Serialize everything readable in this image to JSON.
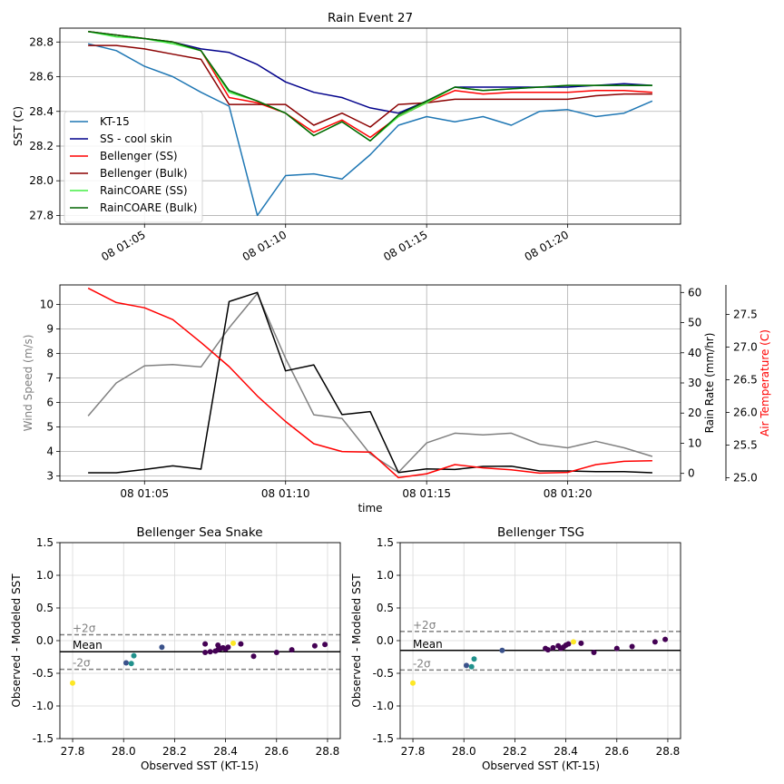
{
  "chart_data": [
    {
      "type": "line",
      "title": "Rain Event 27",
      "ylabel": "SST (C)",
      "xlabel": "",
      "x_start": "08 01:03",
      "x_step_minutes": 1,
      "xlim": [
        "08 01:02",
        "08 01:24"
      ],
      "ylim": [
        27.75,
        28.88
      ],
      "x_ticks": [
        "08 01:05",
        "08 01:10",
        "08 01:15",
        "08 01:20"
      ],
      "y_ticks": [
        27.8,
        28.0,
        28.2,
        28.4,
        28.6,
        28.8
      ],
      "grid": true,
      "legend": "lower-left",
      "series": [
        {
          "name": "KT-15",
          "color": "#1f77b4",
          "values": [
            28.79,
            28.75,
            28.66,
            28.6,
            28.51,
            28.43,
            27.8,
            28.03,
            28.04,
            28.01,
            28.15,
            28.32,
            28.37,
            28.34,
            28.37,
            28.32,
            28.4,
            28.41,
            28.37,
            28.39,
            28.46
          ]
        },
        {
          "name": "SS - cool skin",
          "color": "#00008b",
          "values": [
            28.86,
            28.84,
            28.82,
            28.8,
            28.76,
            28.74,
            28.67,
            28.57,
            28.51,
            28.48,
            28.42,
            28.39,
            28.46,
            28.54,
            28.54,
            28.54,
            28.54,
            28.54,
            28.55,
            28.56,
            28.55
          ]
        },
        {
          "name": "Bellenger (SS)",
          "color": "#ff0000",
          "values": [
            28.86,
            28.84,
            28.82,
            28.8,
            28.75,
            28.48,
            28.45,
            28.39,
            28.28,
            28.35,
            28.25,
            28.37,
            28.45,
            28.52,
            28.5,
            28.51,
            28.51,
            28.51,
            28.52,
            28.52,
            28.51
          ]
        },
        {
          "name": "Bellenger (Bulk)",
          "color": "#8b0000",
          "values": [
            28.78,
            28.78,
            28.76,
            28.73,
            28.7,
            28.44,
            28.44,
            28.44,
            28.32,
            28.39,
            28.31,
            28.44,
            28.45,
            28.47,
            28.47,
            28.47,
            28.47,
            28.47,
            28.49,
            28.5,
            28.5
          ]
        },
        {
          "name": "RainCOARE (SS)",
          "color": "#44ee44",
          "values": [
            28.86,
            28.83,
            28.82,
            28.79,
            28.75,
            28.51,
            28.46,
            28.39,
            28.26,
            28.34,
            28.23,
            28.37,
            28.45,
            28.54,
            28.52,
            28.53,
            28.54,
            28.55,
            28.55,
            28.55,
            28.55
          ]
        },
        {
          "name": "RainCOARE (Bulk)",
          "color": "#006400",
          "values": [
            28.86,
            28.84,
            28.82,
            28.8,
            28.75,
            28.52,
            28.46,
            28.39,
            28.26,
            28.34,
            28.23,
            28.38,
            28.46,
            28.54,
            28.52,
            28.53,
            28.54,
            28.55,
            28.55,
            28.55,
            28.55
          ]
        }
      ]
    },
    {
      "type": "line",
      "title": "",
      "xlabel": "time",
      "x_start": "08 01:03",
      "x_step_minutes": 1,
      "xlim": [
        "08 01:02",
        "08 01:24"
      ],
      "x_ticks": [
        "08 01:05",
        "08 01:10",
        "08 01:15",
        "08 01:20"
      ],
      "grid": true,
      "axes": {
        "left": {
          "label": "Wind Speed (m/s)",
          "label_color": "#808080",
          "range": [
            2.8,
            10.8
          ],
          "ticks": [
            3,
            4,
            5,
            6,
            7,
            8,
            9,
            10
          ]
        },
        "right": {
          "label": "Rain Rate (mm/hr)",
          "label_color": "#000000",
          "range": [
            -2.5,
            62.5
          ],
          "ticks": [
            0,
            10,
            20,
            30,
            40,
            50,
            60
          ]
        },
        "far_right": {
          "label": "Air Temperature (C)",
          "label_color": "#ff0000",
          "range": [
            24.95,
            27.95
          ],
          "ticks": [
            25.0,
            25.5,
            26.0,
            26.5,
            27.0,
            27.5
          ]
        }
      },
      "series": [
        {
          "axis": "left",
          "color": "#808080",
          "values": [
            5.45,
            6.8,
            7.5,
            7.55,
            7.45,
            9.05,
            10.45,
            7.8,
            5.5,
            5.35,
            3.9,
            3.15,
            4.35,
            4.75,
            4.68,
            4.75,
            4.3,
            4.15,
            4.42,
            4.15,
            3.8
          ]
        },
        {
          "axis": "right",
          "color": "#000000",
          "values": [
            0.2,
            0.2,
            1.3,
            2.5,
            1.4,
            57.0,
            60.0,
            34.0,
            36.0,
            19.5,
            20.5,
            0.3,
            1.5,
            1.3,
            2.3,
            2.4,
            0.8,
            0.8,
            0.6,
            0.6,
            0.2
          ]
        },
        {
          "axis": "far_right",
          "color": "#ff0000",
          "values": [
            27.9,
            27.68,
            27.6,
            27.42,
            27.07,
            26.7,
            26.25,
            25.86,
            25.52,
            25.4,
            25.39,
            25.0,
            25.06,
            25.2,
            25.15,
            25.12,
            25.07,
            25.08,
            25.2,
            25.25,
            25.26
          ]
        }
      ]
    },
    {
      "type": "scatter",
      "title": "Bellenger Sea Snake",
      "xlabel": "Observed SST (KT-15)",
      "ylabel": "Observed - Modeled SST",
      "xlim": [
        27.75,
        28.85
      ],
      "ylim": [
        -1.5,
        1.5
      ],
      "x_ticks": [
        "27.8",
        "28.0",
        "28.2",
        "28.4",
        "28.6",
        "28.8"
      ],
      "y_ticks": [
        "-1.5",
        "-1.0",
        "-0.5",
        "0.0",
        "0.5",
        "1.0",
        "1.5"
      ],
      "grid": true,
      "reference_lines": [
        {
          "label": "+2σ",
          "y": 0.09,
          "style": "dashed",
          "color": "#808080"
        },
        {
          "label": "Mean",
          "y": -0.17,
          "style": "solid",
          "color": "#000000"
        },
        {
          "label": "-2σ",
          "y": -0.44,
          "style": "dashed",
          "color": "#808080"
        }
      ],
      "points": [
        {
          "x": 27.8,
          "y": -0.65,
          "color": "#fde725"
        },
        {
          "x": 28.01,
          "y": -0.34,
          "color": "#3b528b"
        },
        {
          "x": 28.03,
          "y": -0.35,
          "color": "#21918c"
        },
        {
          "x": 28.04,
          "y": -0.23,
          "color": "#21918c"
        },
        {
          "x": 28.15,
          "y": -0.1,
          "color": "#3b528b"
        },
        {
          "x": 28.32,
          "y": -0.05,
          "color": "#440154"
        },
        {
          "x": 28.32,
          "y": -0.18,
          "color": "#440154"
        },
        {
          "x": 28.34,
          "y": -0.17,
          "color": "#440154"
        },
        {
          "x": 28.36,
          "y": -0.16,
          "color": "#440154"
        },
        {
          "x": 28.37,
          "y": -0.07,
          "color": "#440154"
        },
        {
          "x": 28.37,
          "y": -0.14,
          "color": "#440154"
        },
        {
          "x": 28.38,
          "y": -0.12,
          "color": "#440154"
        },
        {
          "x": 28.39,
          "y": -0.11,
          "color": "#440154"
        },
        {
          "x": 28.4,
          "y": -0.13,
          "color": "#440154"
        },
        {
          "x": 28.41,
          "y": -0.1,
          "color": "#440154"
        },
        {
          "x": 28.43,
          "y": -0.04,
          "color": "#fde725"
        },
        {
          "x": 28.46,
          "y": -0.05,
          "color": "#440154"
        },
        {
          "x": 28.51,
          "y": -0.24,
          "color": "#440154"
        },
        {
          "x": 28.6,
          "y": -0.18,
          "color": "#440154"
        },
        {
          "x": 28.66,
          "y": -0.14,
          "color": "#440154"
        },
        {
          "x": 28.75,
          "y": -0.08,
          "color": "#440154"
        },
        {
          "x": 28.79,
          "y": -0.06,
          "color": "#440154"
        }
      ]
    },
    {
      "type": "scatter",
      "title": "Bellenger TSG",
      "xlabel": "Observed SST (KT-15)",
      "ylabel": "Observed - Modeled SST",
      "xlim": [
        27.75,
        28.85
      ],
      "ylim": [
        -1.5,
        1.5
      ],
      "x_ticks": [
        "27.8",
        "28.0",
        "28.2",
        "28.4",
        "28.6",
        "28.8"
      ],
      "y_ticks": [
        "-1.5",
        "-1.0",
        "-0.5",
        "0.0",
        "0.5",
        "1.0",
        "1.5"
      ],
      "grid": true,
      "reference_lines": [
        {
          "label": "+2σ",
          "y": 0.14,
          "style": "dashed",
          "color": "#808080"
        },
        {
          "label": "Mean",
          "y": -0.15,
          "style": "solid",
          "color": "#000000"
        },
        {
          "label": "-2σ",
          "y": -0.45,
          "style": "dashed",
          "color": "#808080"
        }
      ],
      "points": [
        {
          "x": 27.8,
          "y": -0.65,
          "color": "#fde725"
        },
        {
          "x": 28.01,
          "y": -0.38,
          "color": "#3b528b"
        },
        {
          "x": 28.03,
          "y": -0.4,
          "color": "#21918c"
        },
        {
          "x": 28.04,
          "y": -0.28,
          "color": "#21918c"
        },
        {
          "x": 28.15,
          "y": -0.15,
          "color": "#3b528b"
        },
        {
          "x": 28.32,
          "y": -0.12,
          "color": "#440154"
        },
        {
          "x": 28.33,
          "y": -0.14,
          "color": "#440154"
        },
        {
          "x": 28.35,
          "y": -0.11,
          "color": "#440154"
        },
        {
          "x": 28.37,
          "y": -0.08,
          "color": "#440154"
        },
        {
          "x": 28.38,
          "y": -0.12,
          "color": "#440154"
        },
        {
          "x": 28.39,
          "y": -0.1,
          "color": "#440154"
        },
        {
          "x": 28.4,
          "y": -0.07,
          "color": "#440154"
        },
        {
          "x": 28.41,
          "y": -0.05,
          "color": "#440154"
        },
        {
          "x": 28.43,
          "y": -0.02,
          "color": "#fde725"
        },
        {
          "x": 28.46,
          "y": -0.04,
          "color": "#440154"
        },
        {
          "x": 28.51,
          "y": -0.18,
          "color": "#440154"
        },
        {
          "x": 28.6,
          "y": -0.12,
          "color": "#440154"
        },
        {
          "x": 28.66,
          "y": -0.09,
          "color": "#440154"
        },
        {
          "x": 28.75,
          "y": -0.02,
          "color": "#440154"
        },
        {
          "x": 28.79,
          "y": 0.02,
          "color": "#440154"
        }
      ]
    }
  ]
}
